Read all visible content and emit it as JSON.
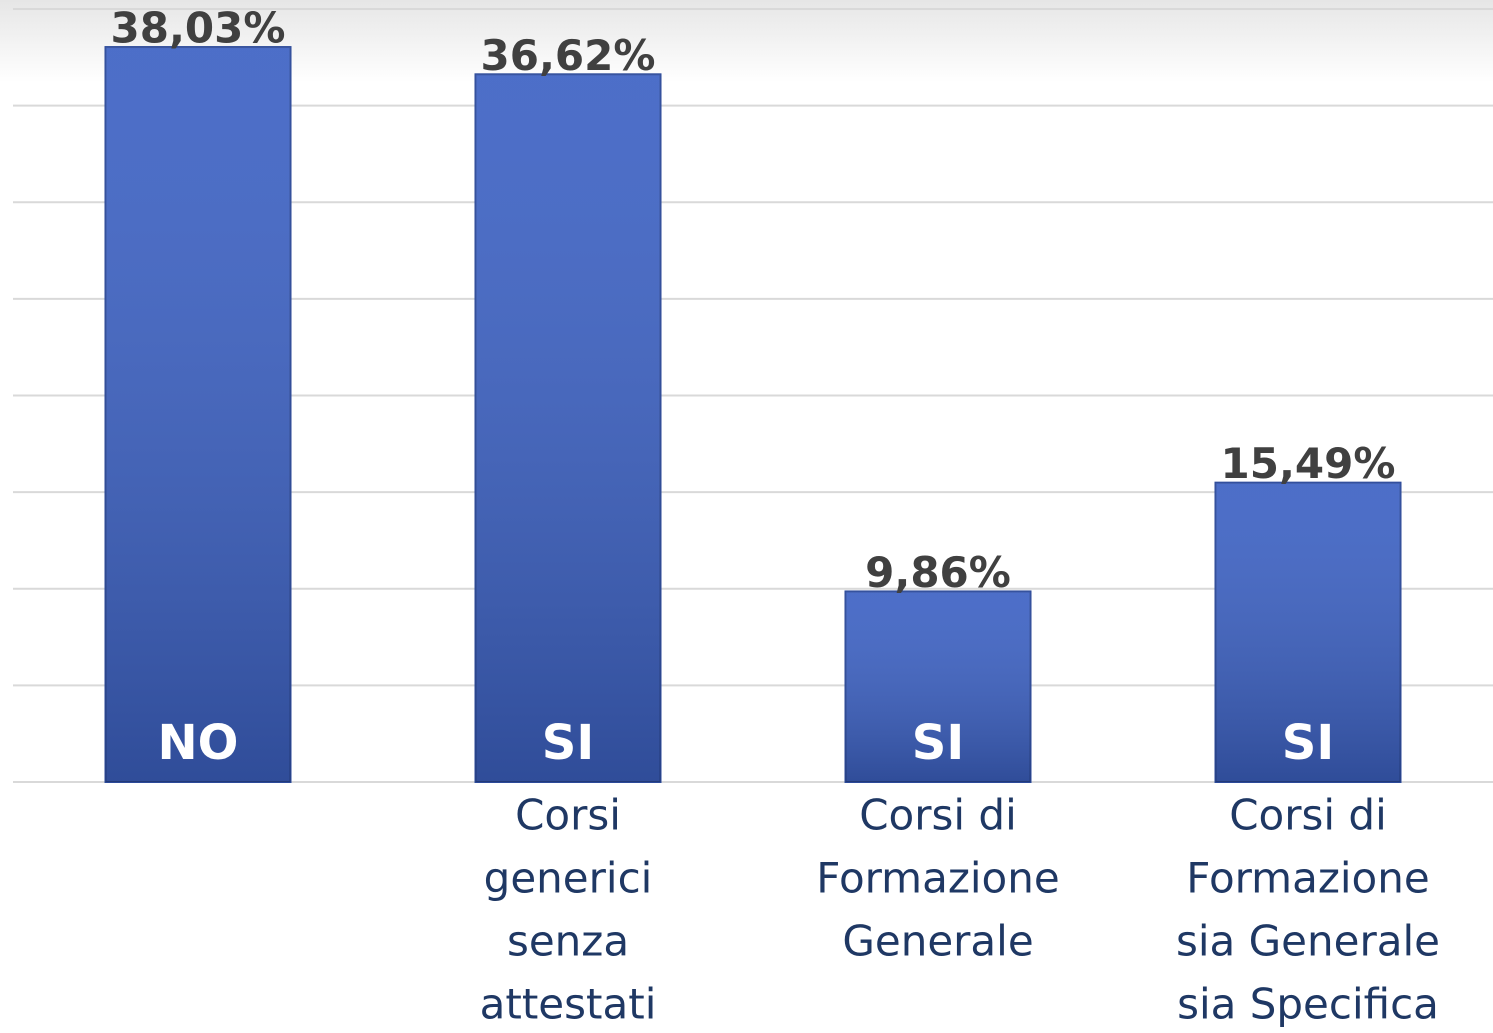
{
  "chart_data": {
    "type": "bar",
    "categories": [
      null,
      [
        "Corsi",
        "generici",
        "senza",
        "attestati"
      ],
      [
        "Corsi di",
        "Formazione",
        "Generale"
      ],
      [
        "Corsi di",
        "Formazione",
        "sia Generale",
        "sia Specifica"
      ]
    ],
    "bar_labels": [
      "NO",
      "SI",
      "SI",
      "SI"
    ],
    "values": [
      38.03,
      36.62,
      9.86,
      15.49
    ],
    "value_labels": [
      "38,03%",
      "36,62%",
      "9,86%",
      "15,49%"
    ],
    "color": "#3d62c4",
    "ylim": [
      0,
      40
    ],
    "yticks": [
      0,
      5,
      10,
      15,
      20,
      25,
      30,
      35,
      40
    ],
    "grid": true
  }
}
